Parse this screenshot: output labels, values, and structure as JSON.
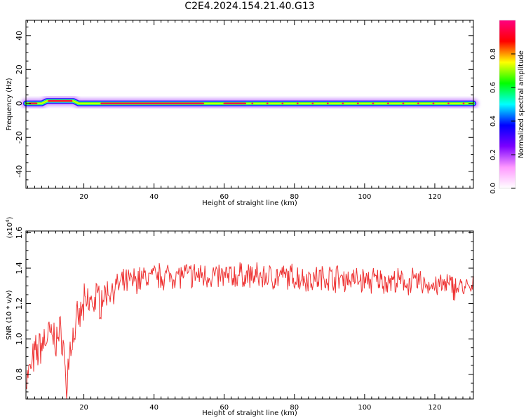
{
  "title": "C2E4.2024.154.21.40.G13",
  "chart_data": [
    {
      "type": "heatmap",
      "xlabel": "Height of straight line (km)",
      "ylabel": "Frequency (Hz)",
      "xlim": [
        3.5,
        131
      ],
      "ylim": [
        -50,
        49
      ],
      "xticks": [
        20,
        40,
        60,
        80,
        100,
        120
      ],
      "yticks": [
        -40,
        -20,
        0,
        20,
        40
      ],
      "grid": false,
      "colorbar": {
        "label": "Normalized spectral amplitude",
        "range": [
          0,
          1
        ],
        "ticks": [
          "0.0",
          "0.2",
          "0.4",
          "0.6",
          "0.8"
        ],
        "colors": [
          "#ffffff",
          "#ff99ff",
          "#7b00ff",
          "#0000ff",
          "#00ffff",
          "#00ff00",
          "#ffff00",
          "#ff0000",
          "#ff0080"
        ]
      },
      "ridge": {
        "description_free": true,
        "x": [
          3.5,
          6,
          8,
          9.5,
          10,
          14,
          17,
          18.5,
          131
        ],
        "frequency": [
          0,
          0,
          0,
          1.5,
          1.5,
          1.5,
          1.5,
          0,
          0
        ]
      }
    },
    {
      "type": "line",
      "xlabel": "Height of straight line (km)",
      "ylabel": "SNR (10 * v/v)",
      "yscale_label": "(x10",
      "yscale_exp": "4",
      "yscale_close": ")",
      "xlim": [
        3.5,
        131
      ],
      "ylim": [
        0.66,
        1.61
      ],
      "xticks": [
        20,
        40,
        60,
        80,
        100,
        120
      ],
      "yticks": [
        "0.8",
        "1.0",
        "1.2",
        "1.4",
        "1.6"
      ],
      "ytick_values": [
        0.8,
        1.0,
        1.2,
        1.4,
        1.6
      ],
      "grid": false,
      "series": [
        {
          "color": "#ee3333",
          "x": [
            4,
            6,
            8,
            10,
            12,
            14,
            15,
            16,
            18,
            20,
            22,
            24,
            26,
            28,
            30,
            32,
            34,
            36,
            38,
            40,
            45,
            50,
            55,
            60,
            65,
            70,
            75,
            80,
            85,
            90,
            95,
            100,
            105,
            110,
            115,
            120,
            125,
            130
          ],
          "y": [
            0.78,
            0.9,
            0.97,
            1.02,
            1.0,
            1.03,
            0.7,
            0.95,
            1.08,
            1.18,
            1.21,
            1.22,
            1.25,
            1.28,
            1.3,
            1.32,
            1.33,
            1.34,
            1.35,
            1.35,
            1.36,
            1.36,
            1.36,
            1.35,
            1.36,
            1.35,
            1.35,
            1.35,
            1.34,
            1.35,
            1.34,
            1.33,
            1.33,
            1.32,
            1.32,
            1.3,
            1.3,
            1.28
          ]
        }
      ]
    }
  ]
}
